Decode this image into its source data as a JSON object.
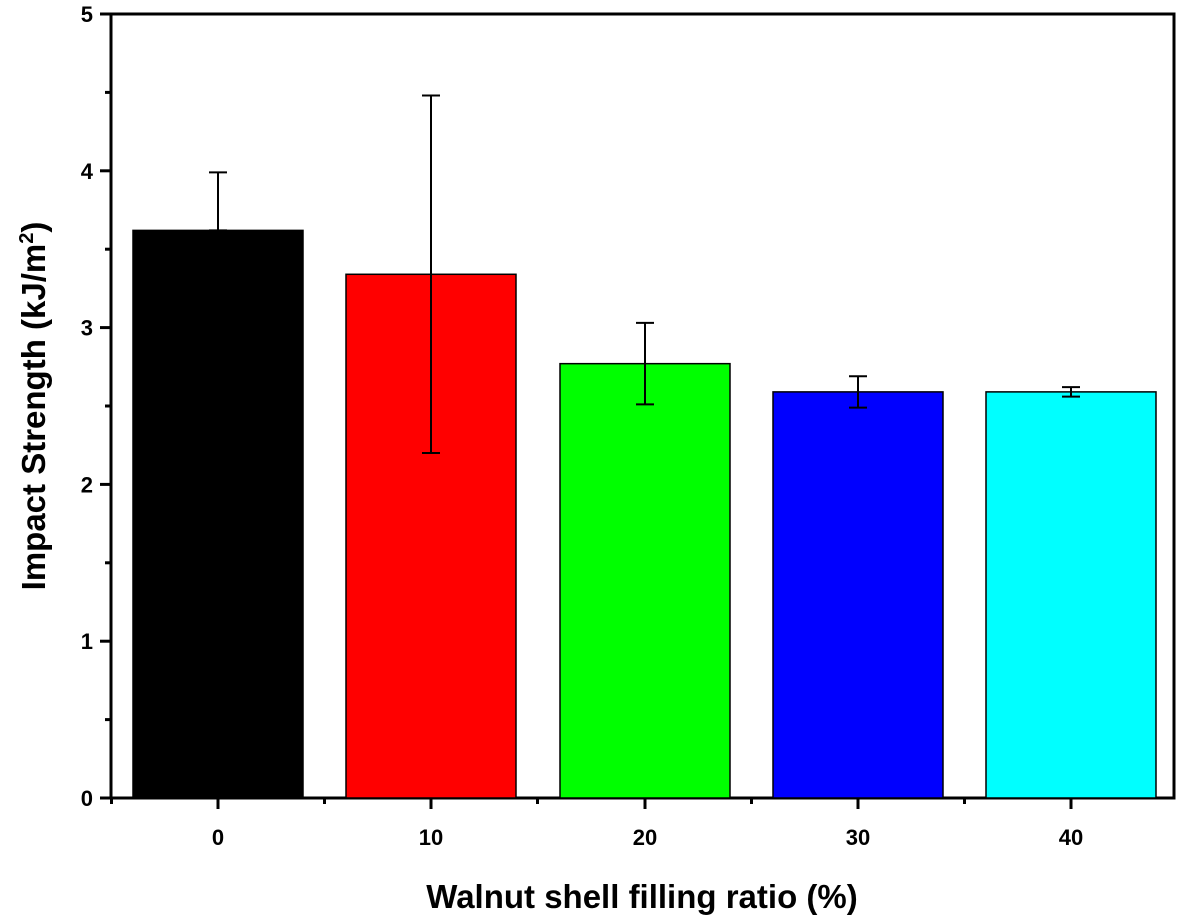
{
  "chart_data": {
    "type": "bar",
    "categories": [
      "0",
      "10",
      "20",
      "30",
      "40"
    ],
    "values": [
      3.62,
      3.34,
      2.77,
      2.59,
      2.59
    ],
    "error": [
      {
        "low": 3.62,
        "high": 3.99
      },
      {
        "low": 2.2,
        "high": 4.48
      },
      {
        "low": 2.51,
        "high": 3.03
      },
      {
        "low": 2.49,
        "high": 2.69
      },
      {
        "low": 2.56,
        "high": 2.62
      }
    ],
    "colors": [
      "#000000",
      "#ff0000",
      "#00ff00",
      "#0000ff",
      "#00ffff"
    ],
    "xlabel": "Walnut shell filling ratio (%)",
    "ylabel_main": "Impact Strength (kJ/m",
    "ylabel_sup": "2",
    "ylabel_end": ")",
    "ylim": [
      0,
      5
    ],
    "yticks": [
      "0",
      "1",
      "2",
      "3",
      "4",
      "5"
    ],
    "grid": false
  }
}
